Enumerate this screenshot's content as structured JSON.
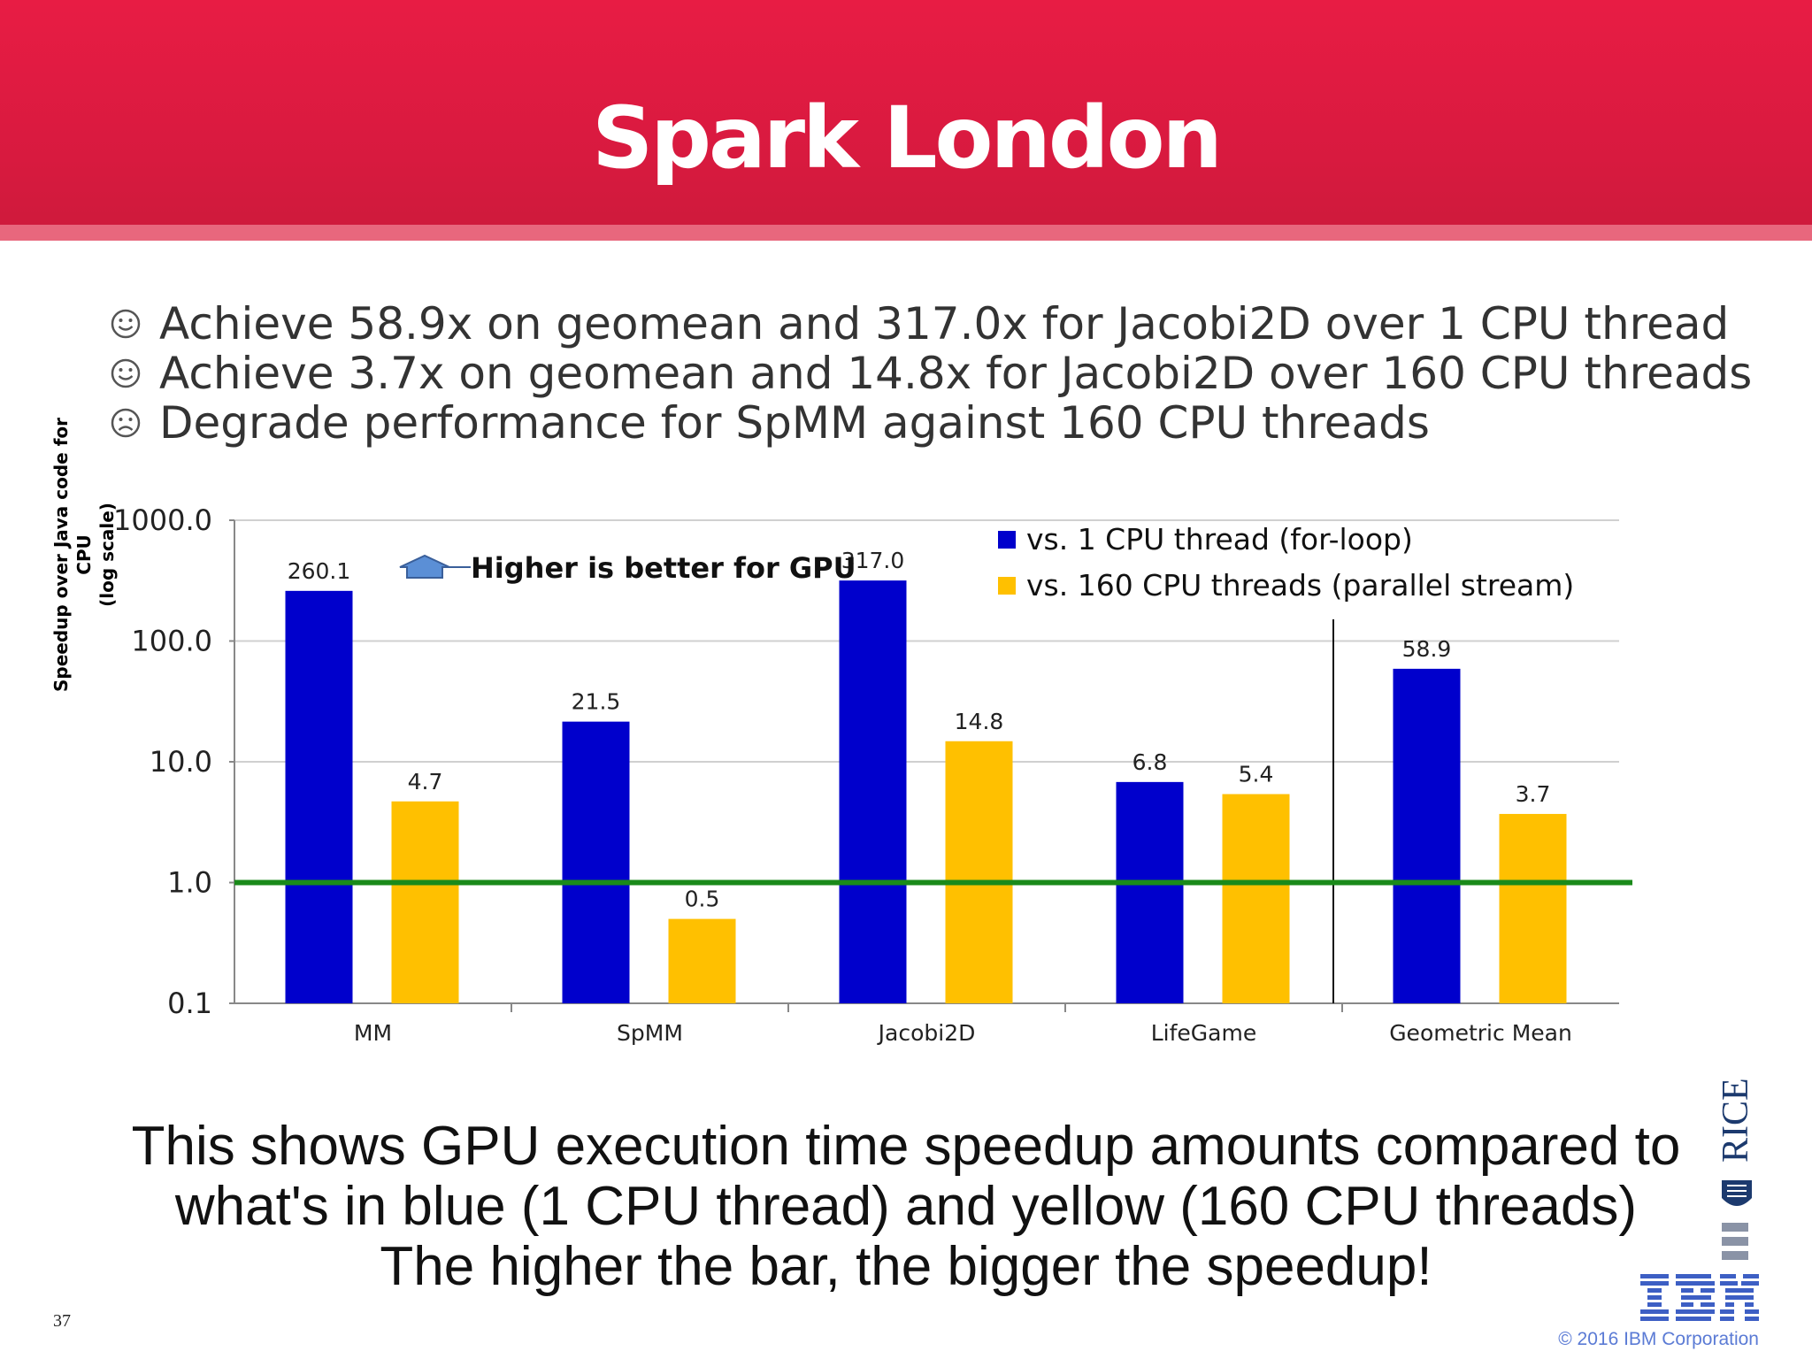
{
  "header": {
    "title": "Spark London"
  },
  "bullets": [
    {
      "icon": "smiley-icon",
      "text": "Achieve 58.9x on geomean and 317.0x for Jacobi2D over 1 CPU thread"
    },
    {
      "icon": "smiley-icon",
      "text": "Achieve 3.7x on geomean and 14.8x for Jacobi2D over 160 CPU threads"
    },
    {
      "icon": "frowny-icon",
      "text": "Degrade performance for SpMM against 160 CPU threads"
    }
  ],
  "chart_data": {
    "type": "bar",
    "categories": [
      "MM",
      "SpMM",
      "Jacobi2D",
      "LifeGame",
      "Geometric Mean"
    ],
    "series": [
      {
        "name": "vs. 1 CPU thread (for-loop)",
        "color": "#0000cc",
        "values": [
          260.1,
          21.5,
          317.0,
          6.8,
          58.9
        ],
        "labels": [
          "260.1",
          "21.5",
          "317.0",
          "6.8",
          "58.9"
        ]
      },
      {
        "name": "vs. 160 CPU threads (parallel stream)",
        "color": "#ffc000",
        "values": [
          4.7,
          0.5,
          14.8,
          5.4,
          3.7
        ],
        "labels": [
          "4.7",
          "0.5",
          "14.8",
          "5.4",
          "3.7"
        ]
      }
    ],
    "ylabel_line1": "Speedup over Java code for CPU",
    "ylabel_line2": "(log scale)",
    "yscale": "log",
    "ylim": [
      0.1,
      1000
    ],
    "yticks": [
      0.1,
      1,
      10,
      100,
      1000
    ],
    "ytick_labels": [
      "0.1",
      "1.0",
      "10.0",
      "100.0",
      "1000.0"
    ],
    "reference_line": {
      "value": 1.0,
      "color": "#1a8a1a"
    },
    "annotation": "Higher is better for GPU",
    "legend_position": "top-right",
    "separator_before_category": "Geometric Mean"
  },
  "caption": {
    "line1": "This shows GPU execution time speedup amounts compared to",
    "line2": "what's in blue (1 CPU thread) and yellow (160 CPU threads)",
    "line3": "The higher the bar, the bigger the speedup!"
  },
  "footer": {
    "page_number": "37",
    "copyright": "© 2016 IBM Corporation",
    "side_logo_text": "RICE",
    "ibm_logo_text": "IBM"
  }
}
